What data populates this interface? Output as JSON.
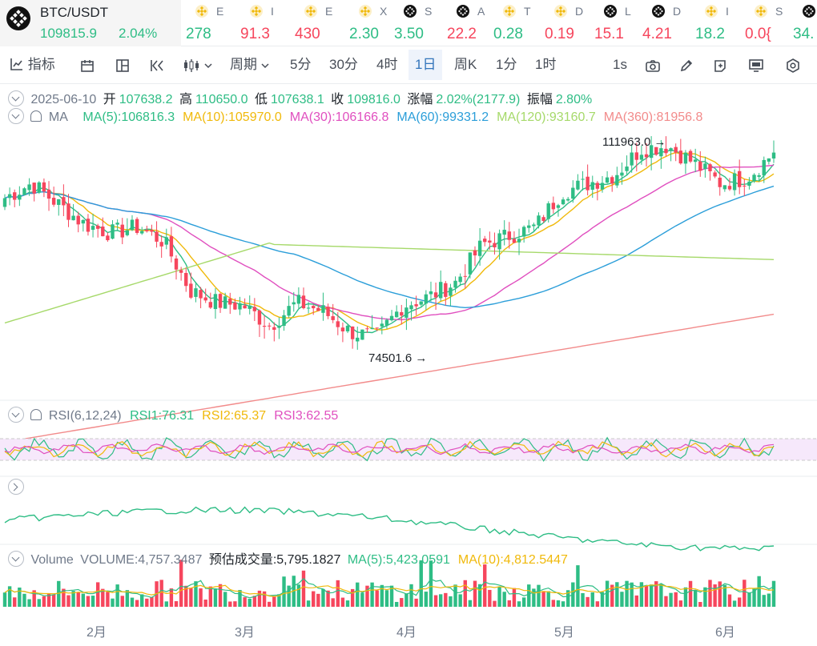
{
  "ticker": {
    "main": {
      "symbol": "BTC/USDT",
      "price": "109815.9",
      "change": "2.04%"
    },
    "items": [
      {
        "icon": "binance-coin-icon",
        "name": "E",
        "value": "278",
        "dir": "up"
      },
      {
        "icon": "binance-coin-icon",
        "name": "I",
        "value": "91.3",
        "dir": "dn"
      },
      {
        "icon": "binance-coin-icon",
        "name": "E",
        "value": "430",
        "dir": "dn"
      },
      {
        "icon": "binance-coin-icon",
        "name": "X",
        "value": "2.30",
        "dir": "up"
      },
      {
        "icon": "checker-coin-icon",
        "name": "S",
        "value": "3.50",
        "dir": "up"
      },
      {
        "icon": "checker-coin-icon",
        "name": "A",
        "value": "22.2",
        "dir": "dn"
      },
      {
        "icon": "binance-coin-icon",
        "name": "T",
        "value": "0.28",
        "dir": "up"
      },
      {
        "icon": "binance-coin-icon",
        "name": "D",
        "value": "0.19",
        "dir": "dn"
      },
      {
        "icon": "checker-coin-icon",
        "name": "L",
        "value": "15.1",
        "dir": "dn"
      },
      {
        "icon": "checker-coin-icon",
        "name": "D",
        "value": "4.21",
        "dir": "dn"
      },
      {
        "icon": "binance-coin-icon",
        "name": "I",
        "value": "18.2",
        "dir": "up"
      },
      {
        "icon": "binance-coin-icon",
        "name": "S",
        "value": "0.0{",
        "dir": "dn"
      },
      {
        "icon": "checker-coin-icon",
        "name": "",
        "value": "34.",
        "dir": "up"
      }
    ]
  },
  "toolbar": {
    "indicators": "指标",
    "period": "周期",
    "intervals": [
      "5分",
      "30分",
      "4时",
      "1日",
      "周K",
      "1分",
      "1时"
    ],
    "active_interval": "1日",
    "refresh": "1s"
  },
  "ohlc": {
    "date": "2025-06-10",
    "open_label": "开",
    "open": "107638.2",
    "high_label": "高",
    "high": "110650.0",
    "low_label": "低",
    "low": "107638.1",
    "close_label": "收",
    "close": "109816.0",
    "chg_label": "涨幅",
    "chg": "2.02%(2177.9)",
    "amp_label": "振幅",
    "amp": "2.80%"
  },
  "ma": {
    "label": "MA",
    "items": [
      {
        "text": "MA(5):106816.3",
        "color": "#2ebd85"
      },
      {
        "text": "MA(10):105970.0",
        "color": "#f0b90b"
      },
      {
        "text": "MA(30):106166.8",
        "color": "#e04fbf"
      },
      {
        "text": "MA(60):99331.2",
        "color": "#2b9ed9"
      },
      {
        "text": "MA(120):93160.7",
        "color": "#a6d96a"
      },
      {
        "text": "MA(360):81956.8",
        "color": "#f28b8b"
      }
    ]
  },
  "annotations": {
    "high": "111963.0",
    "low": "74501.6"
  },
  "rsi": {
    "label": "RSI(6,12,24)",
    "items": [
      {
        "text": "RSI1:76.31",
        "color": "#2ebd85"
      },
      {
        "text": "RSI2:65.37",
        "color": "#f0b90b"
      },
      {
        "text": "RSI3:62.55",
        "color": "#e04fbf"
      }
    ]
  },
  "volume": {
    "label": "Volume",
    "value": "VOLUME:4,757.3487",
    "est": "预估成交量:5,795.1827",
    "items": [
      {
        "text": "MA(5):5,423.0591",
        "color": "#2ebd85"
      },
      {
        "text": "MA(10):4,812.5447",
        "color": "#f0b90b"
      }
    ]
  },
  "x_axis": [
    "2月",
    "3月",
    "4月",
    "5月",
    "6月"
  ],
  "colors": {
    "up": "#2ebd85",
    "down": "#f6465d",
    "active": "#3375bb"
  },
  "chart_data": {
    "type": "candlestick",
    "price_range": [
      74501.6,
      111963.0
    ],
    "close_trend": [
      102000,
      104500,
      101000,
      97500,
      96000,
      97000,
      94500,
      86000,
      84000,
      83500,
      80000,
      84000,
      82500,
      79000,
      78000,
      83500,
      85000,
      87500,
      94000,
      95500,
      97000,
      103000,
      104500,
      106000,
      110500,
      111000,
      108000,
      104500,
      105500,
      109800
    ]
  }
}
